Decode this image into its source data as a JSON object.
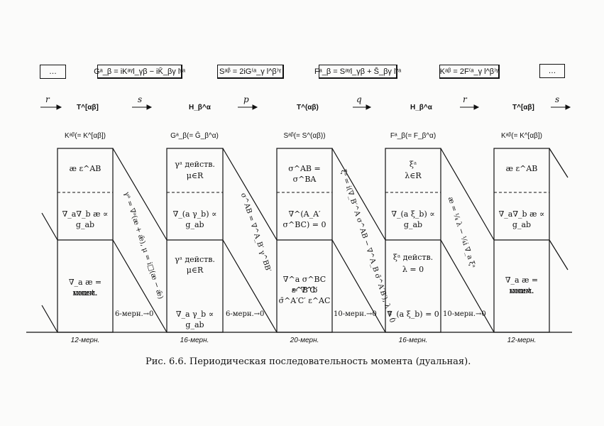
{
  "top_boxes": [
    "…",
    "Gᵃ_β = iKᵃᵞl_γβ − iK̄_βγ lᵞᵃ",
    "Sᵃᵝ = 2iG⁽ᵃ_γ l^β⁾ᵞ",
    "Fᵃ_β = Sᵃᵞl_γβ + S̄_βγ lᵞᵃ",
    "Kᵃᵝ = 2F⁽ᵃ_γ l^β⁾ᵞ",
    "…"
  ],
  "sequence": {
    "labels": [
      "T^[αβ]",
      "H_β^α",
      "T^(αβ)",
      "H_β^α",
      "T^[αβ]"
    ],
    "ops": [
      "r",
      "s",
      "p",
      "q",
      "r",
      "s"
    ]
  },
  "columns": [
    {
      "head": "Kᵃᵝ(= K^[αβ])",
      "top": [
        "æ ε^AB"
      ],
      "mid": [
        "∇_a∇_b æ ∝ g_ab"
      ],
      "bot": [
        "∇_a æ = мним.",
        "const."
      ],
      "foot": "12-мерн."
    },
    {
      "head": "Gᵃ_β(= Ḡ_β^α)",
      "top": [
        "γᵃ действ.",
        "μ∈R"
      ],
      "mid": [
        "∇_(a γ_b) ∝ g_ab"
      ],
      "bot": [
        "γᵃ действ.",
        "μ∈R",
        "∇_a γ_b ∝ g_ab"
      ],
      "foot": "16-мерн."
    },
    {
      "head": "Sᵃᵝ(= S^(αβ))",
      "top": [
        "σ^AB = σ^BA"
      ],
      "mid": [
        "∇^(A_A′ σ^BC) = 0"
      ],
      "bot": [
        "∇^a σ^BC ε^B′C′",
        "= ∇^b σ̄^A′C′ ε^AC"
      ],
      "foot": "20-мерн."
    },
    {
      "head": "Fᵃ_β(= F_β^α)",
      "top": [
        "ξᵃ",
        "λ∈R"
      ],
      "mid": [
        "∇_(a ξ_b) ∝ g_ab"
      ],
      "bot": [
        "ξᵃ действ.",
        "λ = 0",
        "∇_(a ξ_b) = 0"
      ],
      "foot": "16-мерн."
    },
    {
      "head": "Kᵃᵝ(= K^[αβ])",
      "top": [
        "æ ε^AB"
      ],
      "mid": [
        "∇_a∇_b æ ∝ g_ab"
      ],
      "bot": [
        "∇_a æ = мним.",
        "const."
      ],
      "foot": "12-мерн."
    }
  ],
  "diagonals": [
    {
      "text": "γᵃ = ∇ᵃ(æ + ǣ),  μ = i□(æ − ǣ)",
      "ratio": "6-мерн.→0"
    },
    {
      "text": "σ^AB = ∇^A_B′ γ^BB′",
      "ratio": "6-мерн.→0"
    },
    {
      "text": "ξᵃ = i(∇_B′^A σ^AB − ∇^A_B σ̄^A′B′),  λ = 0",
      "ratio": "10-мерн.→0"
    },
    {
      "text": "æ = ¼ λ − ¼i ∇_a ξᵃ",
      "ratio": "10-мерн.→0"
    }
  ],
  "caption": "Рис. 6.6. Периодическая последовательность  момента  (дуальная)."
}
